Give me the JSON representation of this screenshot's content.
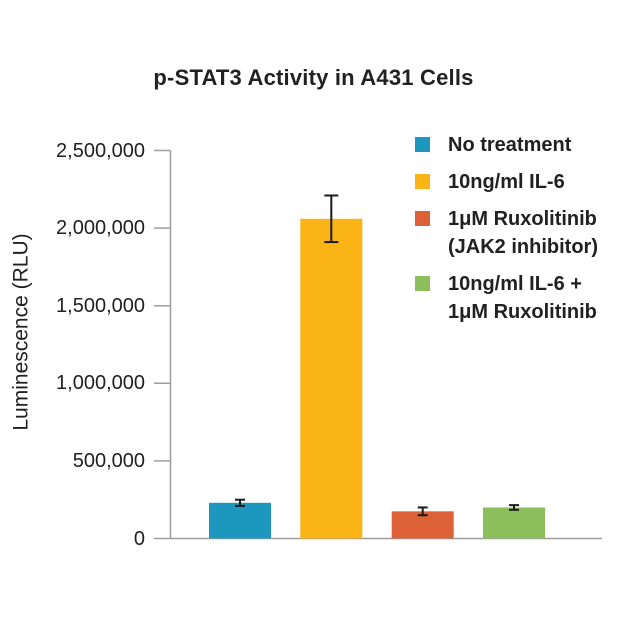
{
  "title": "p-STAT3 Activity in A431 Cells",
  "chart_data": {
    "type": "bar",
    "title": "p-STAT3 Activity in A431 Cells",
    "xlabel": "",
    "ylabel": "Luminescence (RLU)",
    "ylim": [
      0,
      2500000
    ],
    "ytick_step": 500000,
    "ytick_labels": [
      "0",
      "500,000",
      "1,000,000",
      "1,500,000",
      "2,000,000",
      "2,500,000"
    ],
    "grid": false,
    "legend_position": "upper right",
    "categories": [
      "No treatment",
      "10ng/ml IL-6",
      "1μM Ruxolitinib (JAK2 inhibitor)",
      "10ng/ml IL-6 + 1μM Ruxolitinib"
    ],
    "values": [
      230000,
      2060000,
      175000,
      200000
    ],
    "errors": [
      20000,
      150000,
      25000,
      15000
    ],
    "colors": [
      "#1e97be",
      "#fbb416",
      "#dc6136",
      "#8cbf5c"
    ],
    "legend": [
      {
        "color": "#1e97be",
        "label_lines": [
          "No treatment"
        ]
      },
      {
        "color": "#fbb416",
        "label_lines": [
          "10ng/ml IL-6"
        ]
      },
      {
        "color": "#dc6136",
        "label_lines": [
          "1μM Ruxolitinib",
          "(JAK2 inhibitor)"
        ]
      },
      {
        "color": "#8cbf5c",
        "label_lines": [
          "10ng/ml IL-6 +",
          "1μM Ruxolitinib"
        ]
      }
    ],
    "axis_color": "#9e9e9e",
    "error_bar_color": "#1a1a1a",
    "text_color": "#212121",
    "background_color": "#ffffff"
  }
}
